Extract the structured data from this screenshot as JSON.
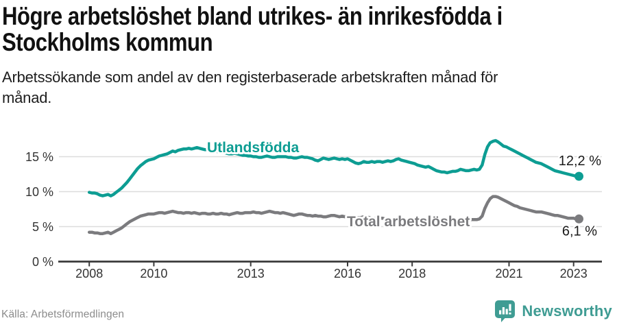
{
  "header": {
    "title_line1": "Högre arbetslöshet bland utrikes- än inrikesfödda i",
    "title_line2": "Stockholms kommun",
    "subtitle_line1": "Arbetssökande som andel av den registerbaserade arbetskraften månad för",
    "subtitle_line2": "månad."
  },
  "footer": {
    "source": "Källa: Arbetsförmedlingen",
    "logo_text": "Newsworthy"
  },
  "colors": {
    "teal": "#0D9D93",
    "gray": "#7B7B7E",
    "grid": "#DCDCDC",
    "axis": "#3A3A3A",
    "tick_text": "#333333",
    "value_text": "#1A1A1A",
    "logo": "#3F9C93"
  },
  "chart_data": {
    "type": "line",
    "title": "Högre arbetslöshet bland utrikes- än inrikesfödda i Stockholms kommun",
    "subtitle": "Arbetssökande som andel av den registerbaserade arbetskraften månad för månad.",
    "x_unit": "month",
    "x_start": "2008-01",
    "x_end": "2023-03",
    "start_year": 2008,
    "ylim": [
      0,
      18.5
    ],
    "grid": "horizontal",
    "x_ticks": [
      2008,
      2010,
      2013,
      2016,
      2018,
      2021,
      2023
    ],
    "y_ticks": [
      {
        "value": 0,
        "label": "0 %"
      },
      {
        "value": 5,
        "label": "5 %"
      },
      {
        "value": 10,
        "label": "10 %"
      },
      {
        "value": 15,
        "label": "15 %"
      }
    ],
    "series": [
      {
        "name": "Utlandsfödda",
        "color_key": "teal",
        "end_label": "12,2 %",
        "end_value": 12.2,
        "values": [
          9.9,
          9.8,
          9.8,
          9.7,
          9.5,
          9.4,
          9.5,
          9.6,
          9.4,
          9.6,
          9.9,
          10.2,
          10.5,
          10.9,
          11.3,
          11.8,
          12.3,
          12.8,
          13.3,
          13.7,
          14.0,
          14.3,
          14.5,
          14.6,
          14.7,
          14.9,
          15.1,
          15.2,
          15.3,
          15.4,
          15.6,
          15.8,
          15.7,
          15.9,
          16.0,
          16.1,
          16.1,
          16.2,
          16.1,
          16.2,
          16.3,
          16.2,
          16.1,
          16.0,
          16.0,
          15.9,
          15.9,
          15.8,
          15.7,
          15.6,
          15.6,
          15.5,
          15.4,
          15.4,
          15.5,
          15.4,
          15.3,
          15.2,
          15.2,
          15.1,
          15.1,
          15.0,
          15.0,
          14.9,
          14.9,
          15.0,
          15.1,
          15.0,
          14.9,
          14.9,
          15.0,
          15.0,
          15.0,
          15.0,
          14.9,
          14.9,
          14.8,
          14.8,
          14.9,
          15.0,
          14.9,
          14.9,
          14.8,
          14.7,
          14.5,
          14.4,
          14.6,
          14.8,
          14.7,
          14.6,
          14.7,
          14.8,
          14.7,
          14.6,
          14.7,
          14.6,
          14.7,
          14.5,
          14.3,
          14.1,
          14.0,
          14.1,
          14.3,
          14.2,
          14.2,
          14.3,
          14.2,
          14.3,
          14.3,
          14.2,
          14.3,
          14.4,
          14.3,
          14.4,
          14.6,
          14.7,
          14.5,
          14.4,
          14.3,
          14.2,
          14.1,
          14.0,
          13.8,
          13.7,
          13.6,
          13.5,
          13.6,
          13.4,
          13.2,
          13.0,
          12.9,
          12.8,
          12.8,
          12.7,
          12.8,
          12.9,
          12.9,
          13.0,
          13.2,
          13.1,
          13.0,
          13.0,
          13.1,
          13.2,
          13.1,
          13.2,
          13.8,
          15.3,
          16.4,
          17.0,
          17.2,
          17.3,
          17.1,
          16.8,
          16.5,
          16.4,
          16.2,
          16.0,
          15.8,
          15.6,
          15.4,
          15.2,
          15.0,
          14.8,
          14.6,
          14.4,
          14.2,
          14.1,
          14.0,
          13.8,
          13.6,
          13.4,
          13.2,
          13.0,
          12.9,
          12.8,
          12.7,
          12.6,
          12.5,
          12.4,
          12.3,
          12.2,
          12.2
        ]
      },
      {
        "name": "Total arbetslöshet",
        "color_key": "gray",
        "end_label": "6,1 %",
        "end_value": 6.1,
        "values": [
          4.2,
          4.2,
          4.1,
          4.1,
          4.0,
          4.0,
          4.1,
          4.2,
          4.0,
          4.2,
          4.4,
          4.6,
          4.8,
          5.1,
          5.4,
          5.7,
          5.9,
          6.1,
          6.3,
          6.5,
          6.6,
          6.7,
          6.8,
          6.8,
          6.8,
          6.9,
          7.0,
          7.0,
          6.9,
          7.0,
          7.1,
          7.2,
          7.1,
          7.0,
          7.0,
          6.9,
          7.0,
          7.0,
          6.9,
          7.0,
          6.9,
          6.8,
          6.9,
          6.9,
          6.8,
          6.8,
          6.9,
          6.8,
          6.8,
          6.9,
          6.8,
          6.8,
          6.7,
          6.8,
          6.9,
          7.0,
          6.9,
          6.9,
          7.0,
          7.0,
          7.0,
          7.1,
          7.0,
          7.0,
          6.9,
          7.0,
          7.1,
          7.2,
          7.1,
          7.0,
          7.0,
          6.9,
          7.0,
          6.9,
          6.8,
          6.7,
          6.6,
          6.7,
          6.8,
          6.8,
          6.7,
          6.6,
          6.6,
          6.5,
          6.6,
          6.5,
          6.5,
          6.4,
          6.4,
          6.5,
          6.6,
          6.6,
          6.5,
          6.4,
          6.5,
          6.4,
          6.5,
          6.4,
          6.4,
          6.3,
          6.3,
          6.3,
          6.4,
          6.4,
          6.3,
          6.2,
          6.2,
          6.2,
          6.2,
          6.2,
          6.1,
          6.1,
          6.0,
          6.1,
          6.2,
          6.2,
          6.1,
          6.0,
          6.0,
          6.0,
          6.0,
          5.9,
          5.9,
          5.8,
          5.8,
          5.9,
          6.0,
          6.0,
          5.9,
          5.8,
          5.8,
          5.8,
          5.8,
          5.8,
          5.7,
          5.7,
          5.8,
          5.9,
          6.0,
          6.0,
          5.9,
          5.9,
          6.0,
          6.0,
          6.0,
          6.1,
          6.5,
          7.6,
          8.4,
          9.0,
          9.3,
          9.3,
          9.2,
          9.0,
          8.8,
          8.6,
          8.4,
          8.2,
          8.0,
          7.9,
          7.7,
          7.6,
          7.5,
          7.4,
          7.3,
          7.2,
          7.1,
          7.1,
          7.1,
          7.0,
          6.9,
          6.8,
          6.7,
          6.6,
          6.6,
          6.5,
          6.4,
          6.3,
          6.2,
          6.2,
          6.2,
          6.1,
          6.1
        ]
      }
    ]
  }
}
